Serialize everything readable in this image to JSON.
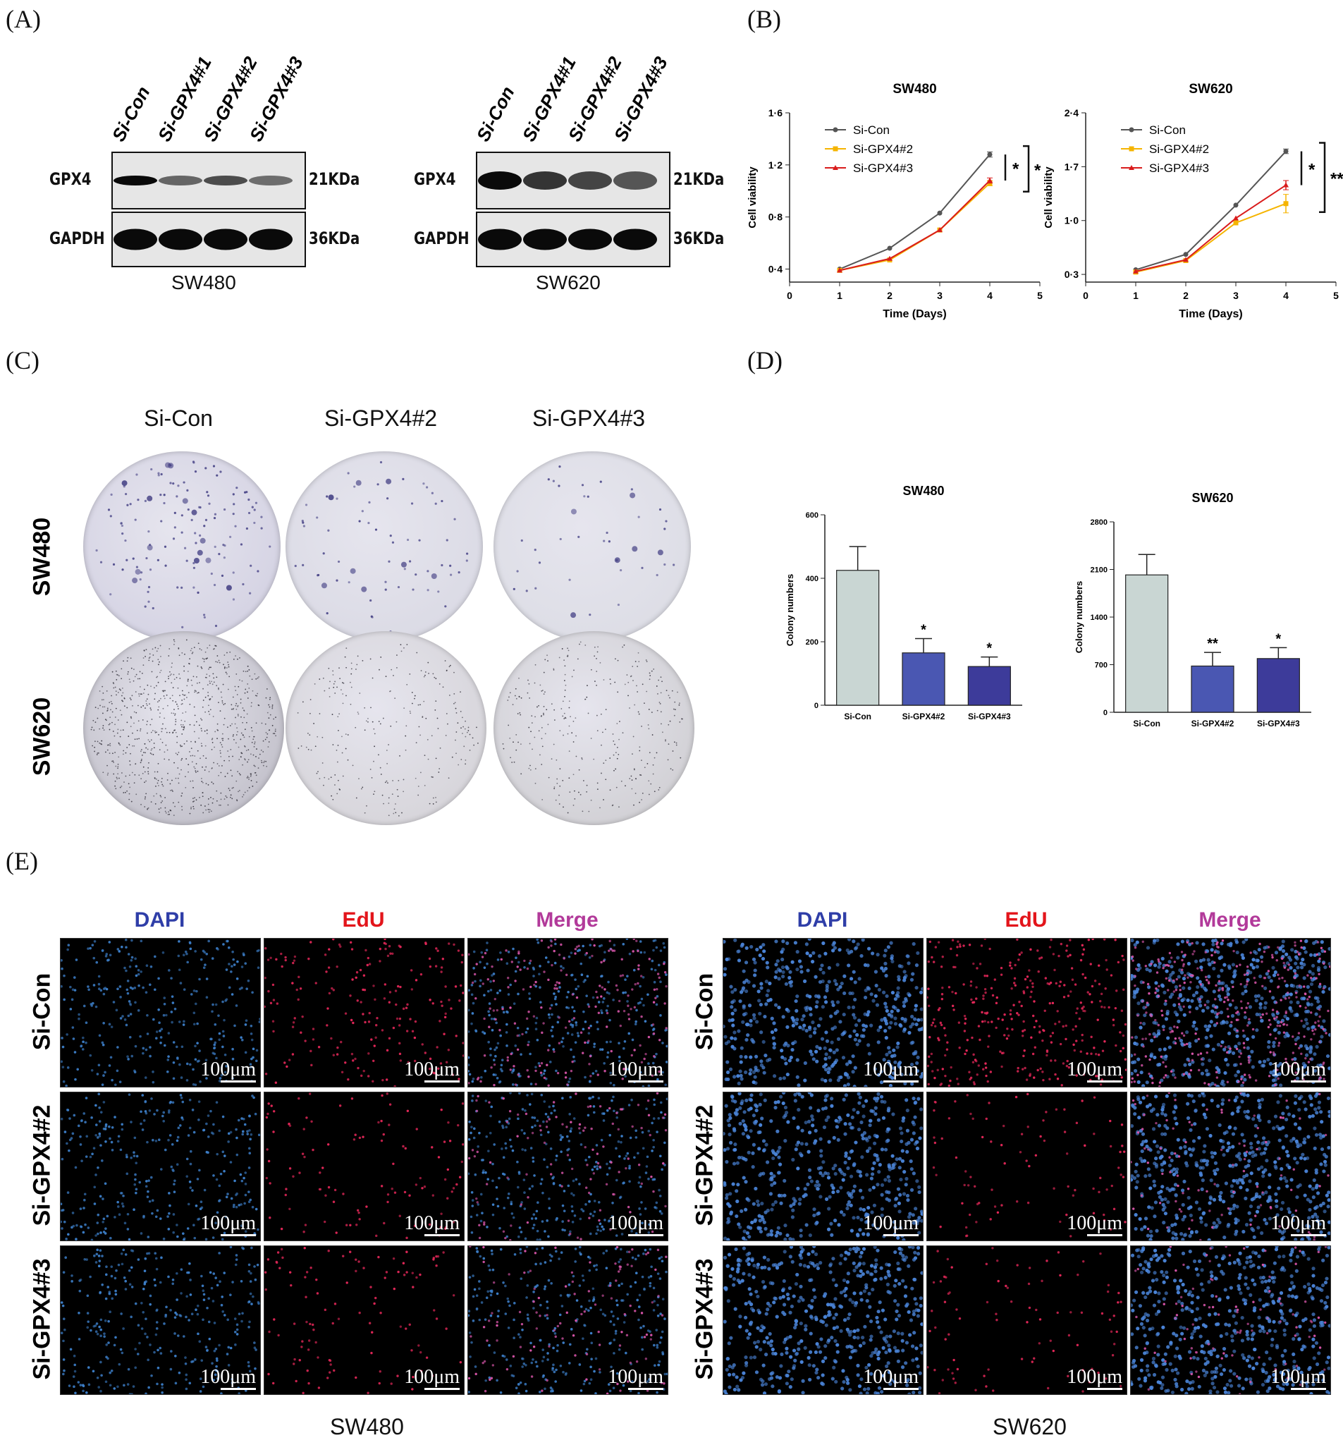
{
  "panel_labels": {
    "a": "(A)",
    "b": "(B)",
    "c": "(C)",
    "d": "(D)",
    "e": "(E)"
  },
  "western": {
    "lanes": [
      "Si-Con",
      "Si-GPX4#1",
      "Si-GPX4#2",
      "Si-GPX4#3"
    ],
    "proteins": [
      {
        "name": "GPX4",
        "size": "21KDa"
      },
      {
        "name": "GAPDH",
        "size": "36KDa"
      }
    ],
    "cell_lines": [
      "SW480",
      "SW620"
    ]
  },
  "chart_data": [
    {
      "type": "line",
      "title": "SW480",
      "xlabel": "Time (Days)",
      "ylabel": "Cell viability",
      "x": [
        1,
        2,
        3,
        4
      ],
      "xlim": [
        0,
        5
      ],
      "xticks": [
        "0",
        "1",
        "2",
        "3",
        "4",
        "5"
      ],
      "ylim": [
        0.3,
        1.6
      ],
      "yticks": [
        {
          "v": 0.4,
          "t": "0·4"
        },
        {
          "v": 0.8,
          "t": "0·8"
        },
        {
          "v": 1.2,
          "t": "1·2"
        },
        {
          "v": 1.6,
          "t": "1·6"
        }
      ],
      "legend": "top-left",
      "series": [
        {
          "name": "Si-Con",
          "color": "#555555",
          "marker": "circle",
          "values": [
            0.4,
            0.56,
            0.83,
            1.28
          ],
          "err": [
            0,
            0,
            0,
            0.02
          ]
        },
        {
          "name": "Si-GPX4#2",
          "color": "#f5b400",
          "marker": "square",
          "values": [
            0.39,
            0.47,
            0.7,
            1.06
          ],
          "err": [
            0,
            0,
            0,
            0.02
          ]
        },
        {
          "name": "Si-GPX4#3",
          "color": "#d91c1c",
          "marker": "triangle",
          "values": [
            0.39,
            0.48,
            0.7,
            1.08
          ],
          "err": [
            0,
            0,
            0,
            0.02
          ]
        }
      ],
      "annotations": [
        "*",
        "*"
      ]
    },
    {
      "type": "line",
      "title": "SW620",
      "xlabel": "Time (Days)",
      "ylabel": "Cell viability",
      "x": [
        1,
        2,
        3,
        4
      ],
      "xlim": [
        0,
        5
      ],
      "xticks": [
        "0",
        "1",
        "2",
        "3",
        "4",
        "5"
      ],
      "ylim": [
        0.2,
        2.4
      ],
      "yticks": [
        {
          "v": 0.3,
          "t": "0·3"
        },
        {
          "v": 1.0,
          "t": "1·0"
        },
        {
          "v": 1.7,
          "t": "1·7"
        },
        {
          "v": 2.4,
          "t": "2·4"
        }
      ],
      "legend": "top-left",
      "series": [
        {
          "name": "Si-Con",
          "color": "#555555",
          "marker": "circle",
          "values": [
            0.36,
            0.56,
            1.2,
            1.9
          ],
          "err": [
            0,
            0,
            0,
            0.03
          ]
        },
        {
          "name": "Si-GPX4#2",
          "color": "#f5b400",
          "marker": "square",
          "values": [
            0.33,
            0.48,
            0.97,
            1.22
          ],
          "err": [
            0,
            0,
            0,
            0.12
          ]
        },
        {
          "name": "Si-GPX4#3",
          "color": "#d91c1c",
          "marker": "triangle",
          "values": [
            0.34,
            0.49,
            1.03,
            1.46
          ],
          "err": [
            0,
            0,
            0,
            0.06
          ]
        }
      ],
      "annotations": [
        "*",
        "**"
      ]
    },
    {
      "type": "bar",
      "title": "SW480",
      "ylabel": "Colony numbers",
      "categories": [
        "Si-Con",
        "Si-GPX4#2",
        "Si-GPX4#3"
      ],
      "values": [
        425,
        165,
        122
      ],
      "err": [
        75,
        45,
        30
      ],
      "ylim": [
        0,
        600
      ],
      "yticks": [
        "0",
        "200",
        "400",
        "600"
      ],
      "colors": [
        "#c9d6d3",
        "#4a57b2",
        "#3d3b9a"
      ],
      "annotations": [
        "",
        "*",
        "*"
      ]
    },
    {
      "type": "bar",
      "title": "SW620",
      "ylabel": "Colony numbers",
      "categories": [
        "Si-Con",
        "Si-GPX4#2",
        "Si-GPX4#3"
      ],
      "values": [
        2020,
        680,
        790
      ],
      "err": [
        300,
        200,
        160
      ],
      "ylim": [
        0,
        2800
      ],
      "yticks": [
        "0",
        "700",
        "1400",
        "2100",
        "2800"
      ],
      "colors": [
        "#c9d6d3",
        "#4a57b2",
        "#3d3b9a"
      ],
      "annotations": [
        "",
        "**",
        "*"
      ]
    }
  ],
  "colony": {
    "columns": [
      "Si-Con",
      "Si-GPX4#2",
      "Si-GPX4#3"
    ],
    "rows": [
      "SW480",
      "SW620"
    ]
  },
  "edu": {
    "channels": [
      {
        "name": "DAPI",
        "color": "#2f3ea8"
      },
      {
        "name": "EdU",
        "color": "#e3151b"
      },
      {
        "name": "Merge",
        "color": "#b23a9a"
      }
    ],
    "rows": [
      "Si-Con",
      "Si-GPX4#2",
      "Si-GPX4#3"
    ],
    "scale": "100μm",
    "cell_lines": [
      "SW480",
      "SW620"
    ]
  }
}
